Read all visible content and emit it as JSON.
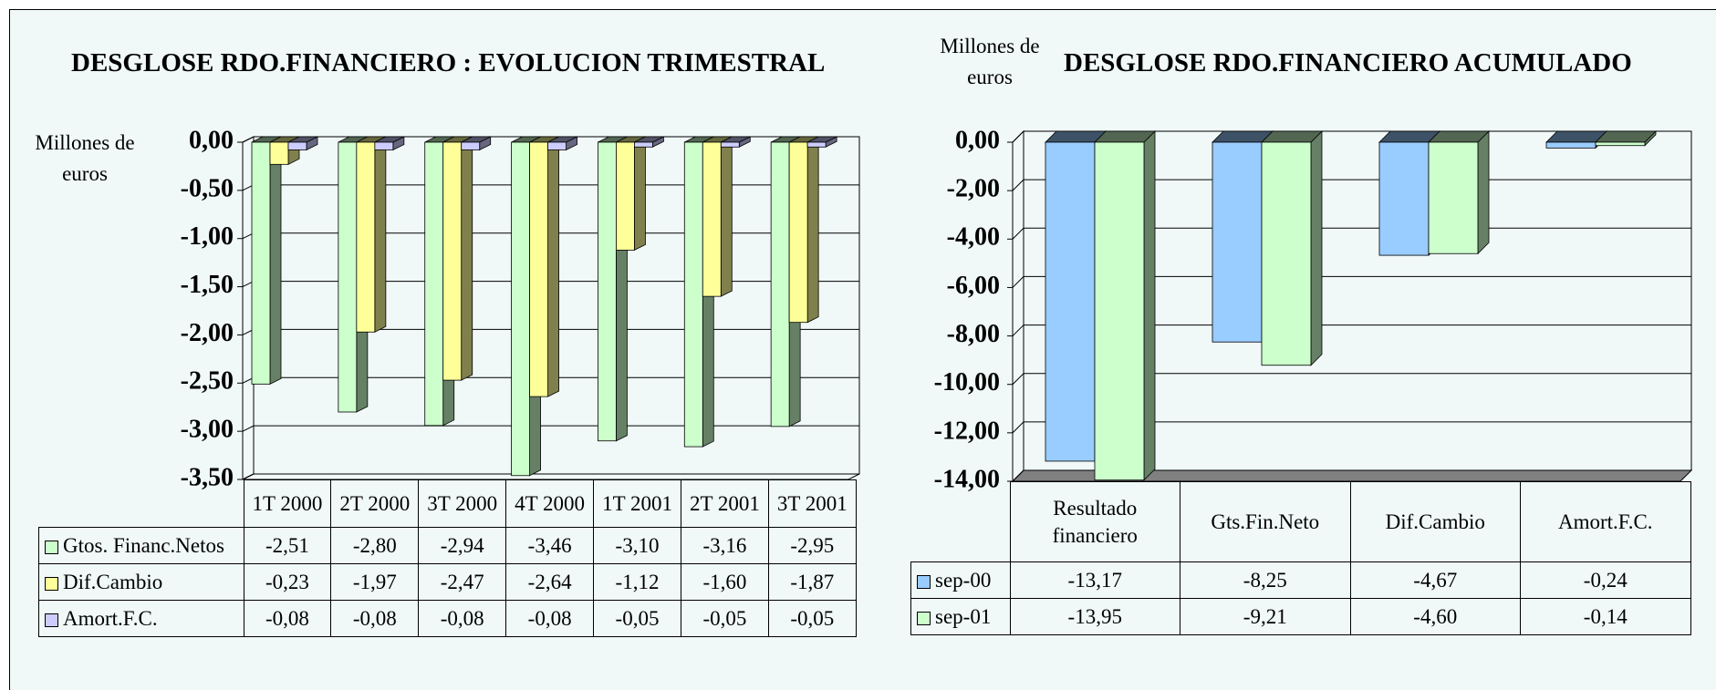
{
  "chart_data": [
    {
      "type": "bar",
      "title": "DESGLOSE RDO.FINANCIERO : EVOLUCION TRIMESTRAL",
      "y_label": "Millones de euros",
      "categories": [
        "1T 2000",
        "2T 2000",
        "3T 2000",
        "4T 2000",
        "1T 2001",
        "2T 2001",
        "3T 2001"
      ],
      "series": [
        {
          "name": "Gtos. Financ.Netos",
          "color": "#ccffcc",
          "values": [
            -2.51,
            -2.8,
            -2.94,
            -3.46,
            -3.1,
            -3.16,
            -2.95
          ],
          "value_labels": [
            "-2,51",
            "-2,80",
            "-2,94",
            "-3,46",
            "-3,10",
            "-3,16",
            "-2,95"
          ]
        },
        {
          "name": "Dif.Cambio",
          "color": "#ffff99",
          "values": [
            -0.23,
            -1.97,
            -2.47,
            -2.64,
            -1.12,
            -1.6,
            -1.87
          ],
          "value_labels": [
            "-0,23",
            "-1,97",
            "-2,47",
            "-2,64",
            "-1,12",
            "-1,60",
            "-1,87"
          ]
        },
        {
          "name": "Amort.F.C.",
          "color": "#ccccff",
          "values": [
            -0.08,
            -0.08,
            -0.08,
            -0.08,
            -0.05,
            -0.05,
            -0.05
          ],
          "value_labels": [
            "-0,08",
            "-0,08",
            "-0,08",
            "-0,08",
            "-0,05",
            "-0,05",
            "-0,05"
          ]
        }
      ],
      "ylim": [
        -3.5,
        0
      ],
      "yticks": [
        {
          "value": 0,
          "label": "0,00"
        },
        {
          "value": -0.5,
          "label": "-0,50"
        },
        {
          "value": -1,
          "label": "-1,00"
        },
        {
          "value": -1.5,
          "label": "-1,50"
        },
        {
          "value": -2,
          "label": "-2,00"
        },
        {
          "value": -2.5,
          "label": "-2,50"
        },
        {
          "value": -3,
          "label": "-3,00"
        },
        {
          "value": -3.5,
          "label": "-3,50"
        }
      ],
      "grid": true
    },
    {
      "type": "bar",
      "title": "DESGLOSE RDO.FINANCIERO ACUMULADO",
      "y_label": "Millones de euros",
      "categories": [
        "Resultado financiero",
        "Gts.Fin.Neto",
        "Dif.Cambio",
        "Amort.F.C."
      ],
      "series": [
        {
          "name": "sep-00",
          "color": "#99ccff",
          "values": [
            -13.17,
            -8.25,
            -4.67,
            -0.24
          ],
          "value_labels": [
            "-13,17",
            "-8,25",
            "-4,67",
            "-0,24"
          ]
        },
        {
          "name": "sep-01",
          "color": "#ccffcc",
          "values": [
            -13.95,
            -9.21,
            -4.6,
            -0.14
          ],
          "value_labels": [
            "-13,95",
            "-9,21",
            "-4,60",
            "-0,14"
          ]
        }
      ],
      "ylim": [
        -14,
        0
      ],
      "yticks": [
        {
          "value": 0,
          "label": "0,00"
        },
        {
          "value": -2,
          "label": "-2,00"
        },
        {
          "value": -4,
          "label": "-4,00"
        },
        {
          "value": -6,
          "label": "-6,00"
        },
        {
          "value": -8,
          "label": "-8,00"
        },
        {
          "value": -10,
          "label": "-10,00"
        },
        {
          "value": -12,
          "label": "-12,00"
        },
        {
          "value": -14,
          "label": "-14,00"
        }
      ],
      "grid": true
    }
  ]
}
